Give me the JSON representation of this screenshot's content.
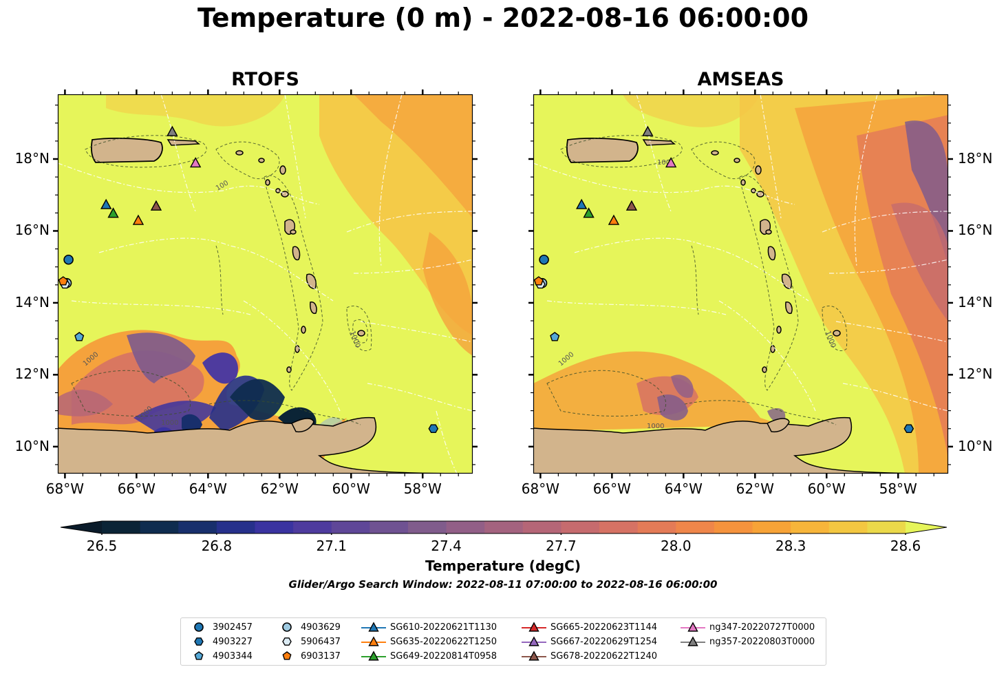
{
  "title": "Temperature (0 m) - 2022-08-16 06:00:00",
  "panels": [
    {
      "title": "RTOFS"
    },
    {
      "title": "AMSEAS"
    }
  ],
  "axes": {
    "x_ticks": [
      {
        "value": -68,
        "label": "68°W"
      },
      {
        "value": -66,
        "label": "66°W"
      },
      {
        "value": -64,
        "label": "64°W"
      },
      {
        "value": -62,
        "label": "62°W"
      },
      {
        "value": -60,
        "label": "60°W"
      },
      {
        "value": -58,
        "label": "58°W"
      }
    ],
    "y_ticks": [
      {
        "value": 10,
        "label": "10°N"
      },
      {
        "value": 12,
        "label": "12°N"
      },
      {
        "value": 14,
        "label": "14°N"
      },
      {
        "value": 16,
        "label": "16°N"
      },
      {
        "value": 18,
        "label": "18°N"
      }
    ],
    "lon_range": [
      -68.2,
      -56.6
    ],
    "lat_range": [
      9.25,
      19.8
    ]
  },
  "contour_labels": [
    "1000",
    "100"
  ],
  "colorbar": {
    "label": "Temperature (degC)",
    "ticks": [
      "26.5",
      "26.8",
      "27.1",
      "27.4",
      "27.7",
      "28.0",
      "28.3",
      "28.6"
    ],
    "range": [
      26.5,
      28.6
    ],
    "colors": [
      "#0b2436",
      "#0f2c4f",
      "#182f6c",
      "#26308b",
      "#3a33a0",
      "#4e3b9e",
      "#5f4798",
      "#6f5292",
      "#805c8c",
      "#925f87",
      "#a4637f",
      "#b56677",
      "#c66b6e",
      "#d67264",
      "#e47b57",
      "#ef864a",
      "#f5933d",
      "#f7a337",
      "#f7b53a",
      "#f3c741",
      "#ebd94a"
    ],
    "over_color": "#e6f55a",
    "under_color": "#0a1b2a"
  },
  "colors": {
    "land": "#d2b48c",
    "ocean_warm": "#e6f55a",
    "water": "#9fb8cc"
  },
  "search_window": "Glider/Argo Search Window: 2022-08-11 07:00:00 to 2022-08-16 06:00:00",
  "legend": {
    "argo": [
      {
        "id": "3902457",
        "marker": "circle",
        "color": "#1f77b4",
        "lon": -67.9,
        "lat": 15.2
      },
      {
        "id": "4903227",
        "marker": "hexagon",
        "color": "#1f77b4",
        "lon": -57.7,
        "lat": 10.5
      },
      {
        "id": "4903344",
        "marker": "pentagon",
        "color": "#55a8d6",
        "lon": -67.6,
        "lat": 13.05
      },
      {
        "id": "4903629",
        "marker": "circle",
        "color": "#9ecae1",
        "lon": -67.95,
        "lat": 14.55
      },
      {
        "id": "5906437",
        "marker": "hexagon",
        "color": "#dcecf5",
        "lon": -68.0,
        "lat": 14.52
      },
      {
        "id": "6903137",
        "marker": "pentagon",
        "color": "#ff7f0e",
        "lon": -68.05,
        "lat": 14.6
      }
    ],
    "gliders": [
      {
        "id": "SG610-20220621T1130",
        "color": "#1f77b4",
        "lon": -66.85,
        "lat": 16.72
      },
      {
        "id": "SG635-20220622T1250",
        "color": "#ff7f0e",
        "lon": -65.95,
        "lat": 16.28
      },
      {
        "id": "SG649-20220814T0958",
        "color": "#2ca02c",
        "lon": -66.65,
        "lat": 16.48
      },
      {
        "id": "SG665-20220623T1144",
        "color": "#d62728",
        "lon": null,
        "lat": null
      },
      {
        "id": "SG667-20220629T1254",
        "color": "#9467bd",
        "lon": null,
        "lat": null
      },
      {
        "id": "SG678-20220622T1240",
        "color": "#8c564b",
        "lon": -65.45,
        "lat": 16.68
      },
      {
        "id": "ng347-20220727T0000",
        "color": "#e377c2",
        "lon": -64.35,
        "lat": 17.88
      },
      {
        "id": "ng357-20220803T0000",
        "color": "#7f7f7f",
        "lon": -65.0,
        "lat": 18.75
      }
    ]
  }
}
